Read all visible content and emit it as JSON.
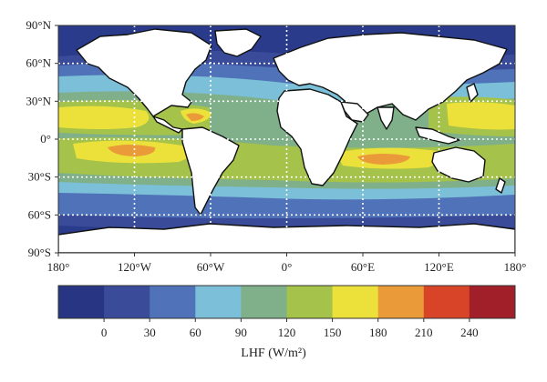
{
  "map": {
    "lat_ticks": [
      {
        "value": 90,
        "label": "90°N"
      },
      {
        "value": 60,
        "label": "60°N"
      },
      {
        "value": 30,
        "label": "30°N"
      },
      {
        "value": 0,
        "label": "0°"
      },
      {
        "value": -30,
        "label": "30°S"
      },
      {
        "value": -60,
        "label": "60°S"
      },
      {
        "value": -90,
        "label": "90°S"
      }
    ],
    "lon_ticks": [
      {
        "value": -180,
        "label": "180°"
      },
      {
        "value": -120,
        "label": "120°W"
      },
      {
        "value": -60,
        "label": "60°W"
      },
      {
        "value": 0,
        "label": "0°"
      },
      {
        "value": 60,
        "label": "60°E"
      },
      {
        "value": 120,
        "label": "120°E"
      },
      {
        "value": 180,
        "label": "180°"
      }
    ],
    "ocean_background_color": "#2b3b8c"
  },
  "colorbar": {
    "title": "LHF (W/m²)",
    "levels": [
      0,
      30,
      60,
      90,
      120,
      150,
      180,
      210,
      240
    ],
    "colors": [
      "#283582",
      "#3a4b9a",
      "#4f72b8",
      "#7bbfd8",
      "#7fb08a",
      "#a5c24a",
      "#ece13a",
      "#ea9a38",
      "#d84428",
      "#a01f28"
    ]
  }
}
